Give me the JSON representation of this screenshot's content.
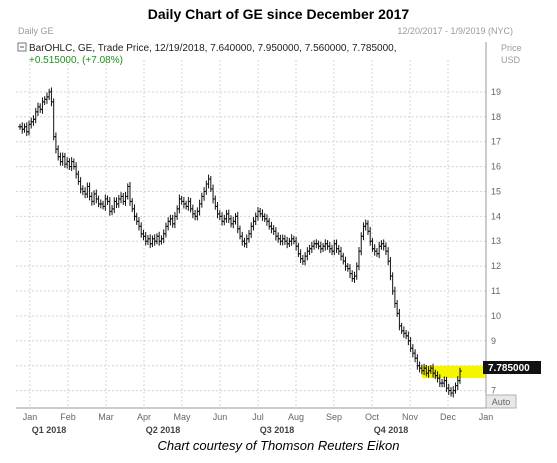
{
  "title": "Daily Chart of GE since December 2017",
  "caption": "Chart courtesy of Thomson Reuters Eikon",
  "header": {
    "left_label": "Daily GE",
    "date_range": "12/20/2017 - 1/9/2019 (NYC)",
    "info_line": "BarOHLC, GE, Trade Price, 12/19/2018, 7.640000, 7.950000, 7.560000, 7.785000,",
    "change_line": "+0.515000, (+7.08%)",
    "price_label": "Price",
    "currency_label": "USD",
    "auto_button": "Auto",
    "current_price_tag": "7.785000"
  },
  "colors": {
    "bars": "#111111",
    "grid": "#d4d4d4",
    "highlight": "#f5f500",
    "price_tag": "#111111",
    "change": "#1f8f1f"
  },
  "chart_data": {
    "type": "ohlc",
    "title": "Daily Chart of GE since December 2017",
    "ylabel": "Price USD",
    "ylim": [
      6.3,
      19.8
    ],
    "y_ticks": [
      7,
      8,
      9,
      10,
      11,
      12,
      13,
      14,
      15,
      16,
      17,
      18,
      19
    ],
    "x_tick_labels": [
      "Jan",
      "Feb",
      "Mar",
      "Apr",
      "May",
      "Jun",
      "Jul",
      "Aug",
      "Sep",
      "Oct",
      "Nov",
      "Dec",
      "Jan"
    ],
    "quarter_labels": [
      "Q1 2018",
      "Q2 2018",
      "Q3 2018",
      "Q4 2018"
    ],
    "grid": true,
    "highlight_band": [
      7.5,
      8.0
    ],
    "last_close": 7.785,
    "closes": [
      17.6,
      17.5,
      17.6,
      17.4,
      17.7,
      17.8,
      17.9,
      18.2,
      18.4,
      18.3,
      18.6,
      18.7,
      18.8,
      19.0,
      18.6,
      17.2,
      16.7,
      16.4,
      16.2,
      16.4,
      16.1,
      16.2,
      16.0,
      16.2,
      16.0,
      15.7,
      15.4,
      15.1,
      15.0,
      14.9,
      15.2,
      14.8,
      14.6,
      14.9,
      14.7,
      14.5,
      14.5,
      14.4,
      14.7,
      14.6,
      14.2,
      14.3,
      14.6,
      14.5,
      14.7,
      14.8,
      14.6,
      14.8,
      15.2,
      14.6,
      14.3,
      14.0,
      13.8,
      13.6,
      13.3,
      13.2,
      13.0,
      13.1,
      12.9,
      13.1,
      13.0,
      13.2,
      13.0,
      13.1,
      13.3,
      13.6,
      13.8,
      13.9,
      13.7,
      14.0,
      14.3,
      14.7,
      14.6,
      14.5,
      14.4,
      14.6,
      14.3,
      14.1,
      14.0,
      14.2,
      14.5,
      14.8,
      15.0,
      15.3,
      15.5,
      15.1,
      14.7,
      14.4,
      14.1,
      14.0,
      13.8,
      13.9,
      14.1,
      13.9,
      13.7,
      13.8,
      14.0,
      13.5,
      13.2,
      13.0,
      12.9,
      13.1,
      13.3,
      13.6,
      13.8,
      14.0,
      14.2,
      14.1,
      14.0,
      13.9,
      13.8,
      13.6,
      13.5,
      13.4,
      13.2,
      13.1,
      13.0,
      13.1,
      13.0,
      12.9,
      13.0,
      13.1,
      13.0,
      12.8,
      12.5,
      12.3,
      12.2,
      12.4,
      12.6,
      12.7,
      12.8,
      12.9,
      12.9,
      12.8,
      12.7,
      12.8,
      12.9,
      12.8,
      12.7,
      12.6,
      12.9,
      12.7,
      12.6,
      12.4,
      12.2,
      12.0,
      11.9,
      11.7,
      11.5,
      11.6,
      12.0,
      12.6,
      13.2,
      13.6,
      13.7,
      13.4,
      13.0,
      12.7,
      12.6,
      12.5,
      12.8,
      12.9,
      12.8,
      12.6,
      12.2,
      11.6,
      11.0,
      10.5,
      10.1,
      9.6,
      9.4,
      9.3,
      9.2,
      9.0,
      8.7,
      8.5,
      8.3,
      8.0,
      7.9,
      7.8,
      7.9,
      7.7,
      7.8,
      7.9,
      7.7,
      7.6,
      7.5,
      7.3,
      7.3,
      7.4,
      7.1,
      7.0,
      6.9,
      7.0,
      7.2,
      7.4,
      7.785
    ]
  }
}
